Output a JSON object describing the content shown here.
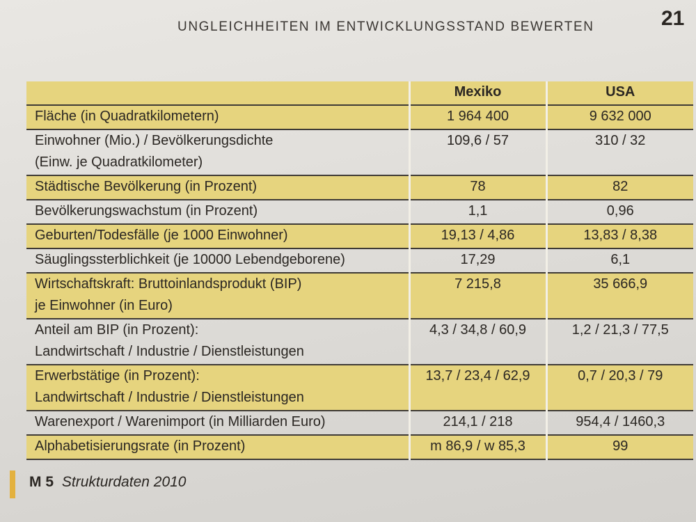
{
  "header": {
    "running_head": "UNGLEICHHEITEN IM ENTWICKLUNGSSTAND BEWERTEN",
    "page_number": "21"
  },
  "table": {
    "columns": [
      "",
      "Mexiko",
      "USA"
    ],
    "rows": [
      {
        "label_lines": [
          "Fläche (in Quadratkilometern)"
        ],
        "mexiko": "1 964 400",
        "usa": "9 632 000"
      },
      {
        "label_lines": [
          "Einwohner (Mio.) / Bevölkerungsdichte",
          "(Einw. je Quadratkilometer)"
        ],
        "mexiko": "109,6 / 57",
        "usa": "310 / 32"
      },
      {
        "label_lines": [
          "Städtische Bevölkerung (in Prozent)"
        ],
        "mexiko": "78",
        "usa": "82"
      },
      {
        "label_lines": [
          "Bevölkerungswachstum (in Prozent)"
        ],
        "mexiko": "1,1",
        "usa": "0,96"
      },
      {
        "label_lines": [
          "Geburten/Todesfälle (je 1000 Einwohner)"
        ],
        "mexiko": "19,13 / 4,86",
        "usa": "13,83 / 8,38"
      },
      {
        "label_lines": [
          "Säuglingssterblichkeit (je 10000 Lebendgeborene)"
        ],
        "mexiko": "17,29",
        "usa": "6,1"
      },
      {
        "label_lines": [
          "Wirtschaftskraft: Bruttoinlandsprodukt (BIP)",
          "je Einwohner (in Euro)"
        ],
        "mexiko": "7 215,8",
        "usa": "35 666,9"
      },
      {
        "label_lines": [
          "Anteil am BIP (in Prozent):",
          "Landwirtschaft / Industrie / Dienstleistungen"
        ],
        "mexiko": "4,3 / 34,8 / 60,9",
        "usa": "1,2 / 21,3 / 77,5"
      },
      {
        "label_lines": [
          "Erwerbstätige (in Prozent):",
          "Landwirtschaft / Industrie / Dienstleistungen"
        ],
        "mexiko": "13,7 / 23,4 / 62,9",
        "usa": "0,7 / 20,3 / 79"
      },
      {
        "label_lines": [
          "Warenexport / Warenimport (in Milliarden Euro)"
        ],
        "mexiko": "214,1 / 218",
        "usa": "954,4 / 1460,3"
      },
      {
        "label_lines": [
          "Alphabetisierungsrate (in Prozent)"
        ],
        "mexiko": "m 86,9 / w 85,3",
        "usa": "99"
      }
    ],
    "row_tint": [
      "tinted",
      "plain",
      "tinted",
      "plain",
      "tinted",
      "plain",
      "tinted",
      "plain",
      "tinted",
      "plain",
      "tinted"
    ]
  },
  "caption": {
    "tag": "M 5",
    "title": "Strukturdaten 2010"
  },
  "colors": {
    "table_tint": "#e6d47e",
    "caption_bar": "#e3b13f",
    "rule": "#3e3a36"
  }
}
